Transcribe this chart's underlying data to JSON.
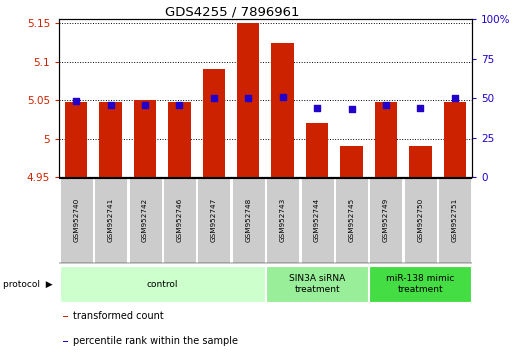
{
  "title": "GDS4255 / 7896961",
  "samples": [
    "GSM952740",
    "GSM952741",
    "GSM952742",
    "GSM952746",
    "GSM952747",
    "GSM952748",
    "GSM952743",
    "GSM952744",
    "GSM952745",
    "GSM952749",
    "GSM952750",
    "GSM952751"
  ],
  "transformed_count": [
    5.048,
    5.048,
    5.05,
    5.048,
    5.09,
    5.15,
    5.125,
    5.02,
    4.99,
    5.048,
    4.99,
    5.048
  ],
  "percentile_rank": [
    48,
    46,
    46,
    46,
    50,
    50,
    51,
    44,
    43,
    46,
    44,
    50
  ],
  "groups": [
    {
      "label": "control",
      "start": 0,
      "end": 5,
      "color": "#ccffcc"
    },
    {
      "label": "SIN3A siRNA\ntreatment",
      "start": 6,
      "end": 8,
      "color": "#99ee99"
    },
    {
      "label": "miR-138 mimic\ntreatment",
      "start": 9,
      "end": 11,
      "color": "#44dd44"
    }
  ],
  "ylim_left": [
    4.95,
    5.155
  ],
  "ylim_right": [
    0,
    100
  ],
  "yticks_left": [
    4.95,
    5.0,
    5.05,
    5.1,
    5.15
  ],
  "ytick_labels_left": [
    "4.95",
    "5",
    "5.05",
    "5.1",
    "5.15"
  ],
  "yticks_right": [
    0,
    25,
    50,
    75,
    100
  ],
  "ytick_labels_right": [
    "0",
    "25",
    "50",
    "75",
    "100%"
  ],
  "bar_color": "#cc2200",
  "dot_color": "#2200cc",
  "bar_bottom": 4.95,
  "bar_width": 0.65,
  "background_color": "#ffffff",
  "sample_box_color": "#cccccc",
  "legend_items": [
    {
      "label": "transformed count",
      "color": "#cc2200"
    },
    {
      "label": "percentile rank within the sample",
      "color": "#2200cc"
    }
  ],
  "protocol_label": "protocol",
  "n_samples": 12,
  "n_control": 6,
  "n_sin3a": 3,
  "n_mir": 3
}
